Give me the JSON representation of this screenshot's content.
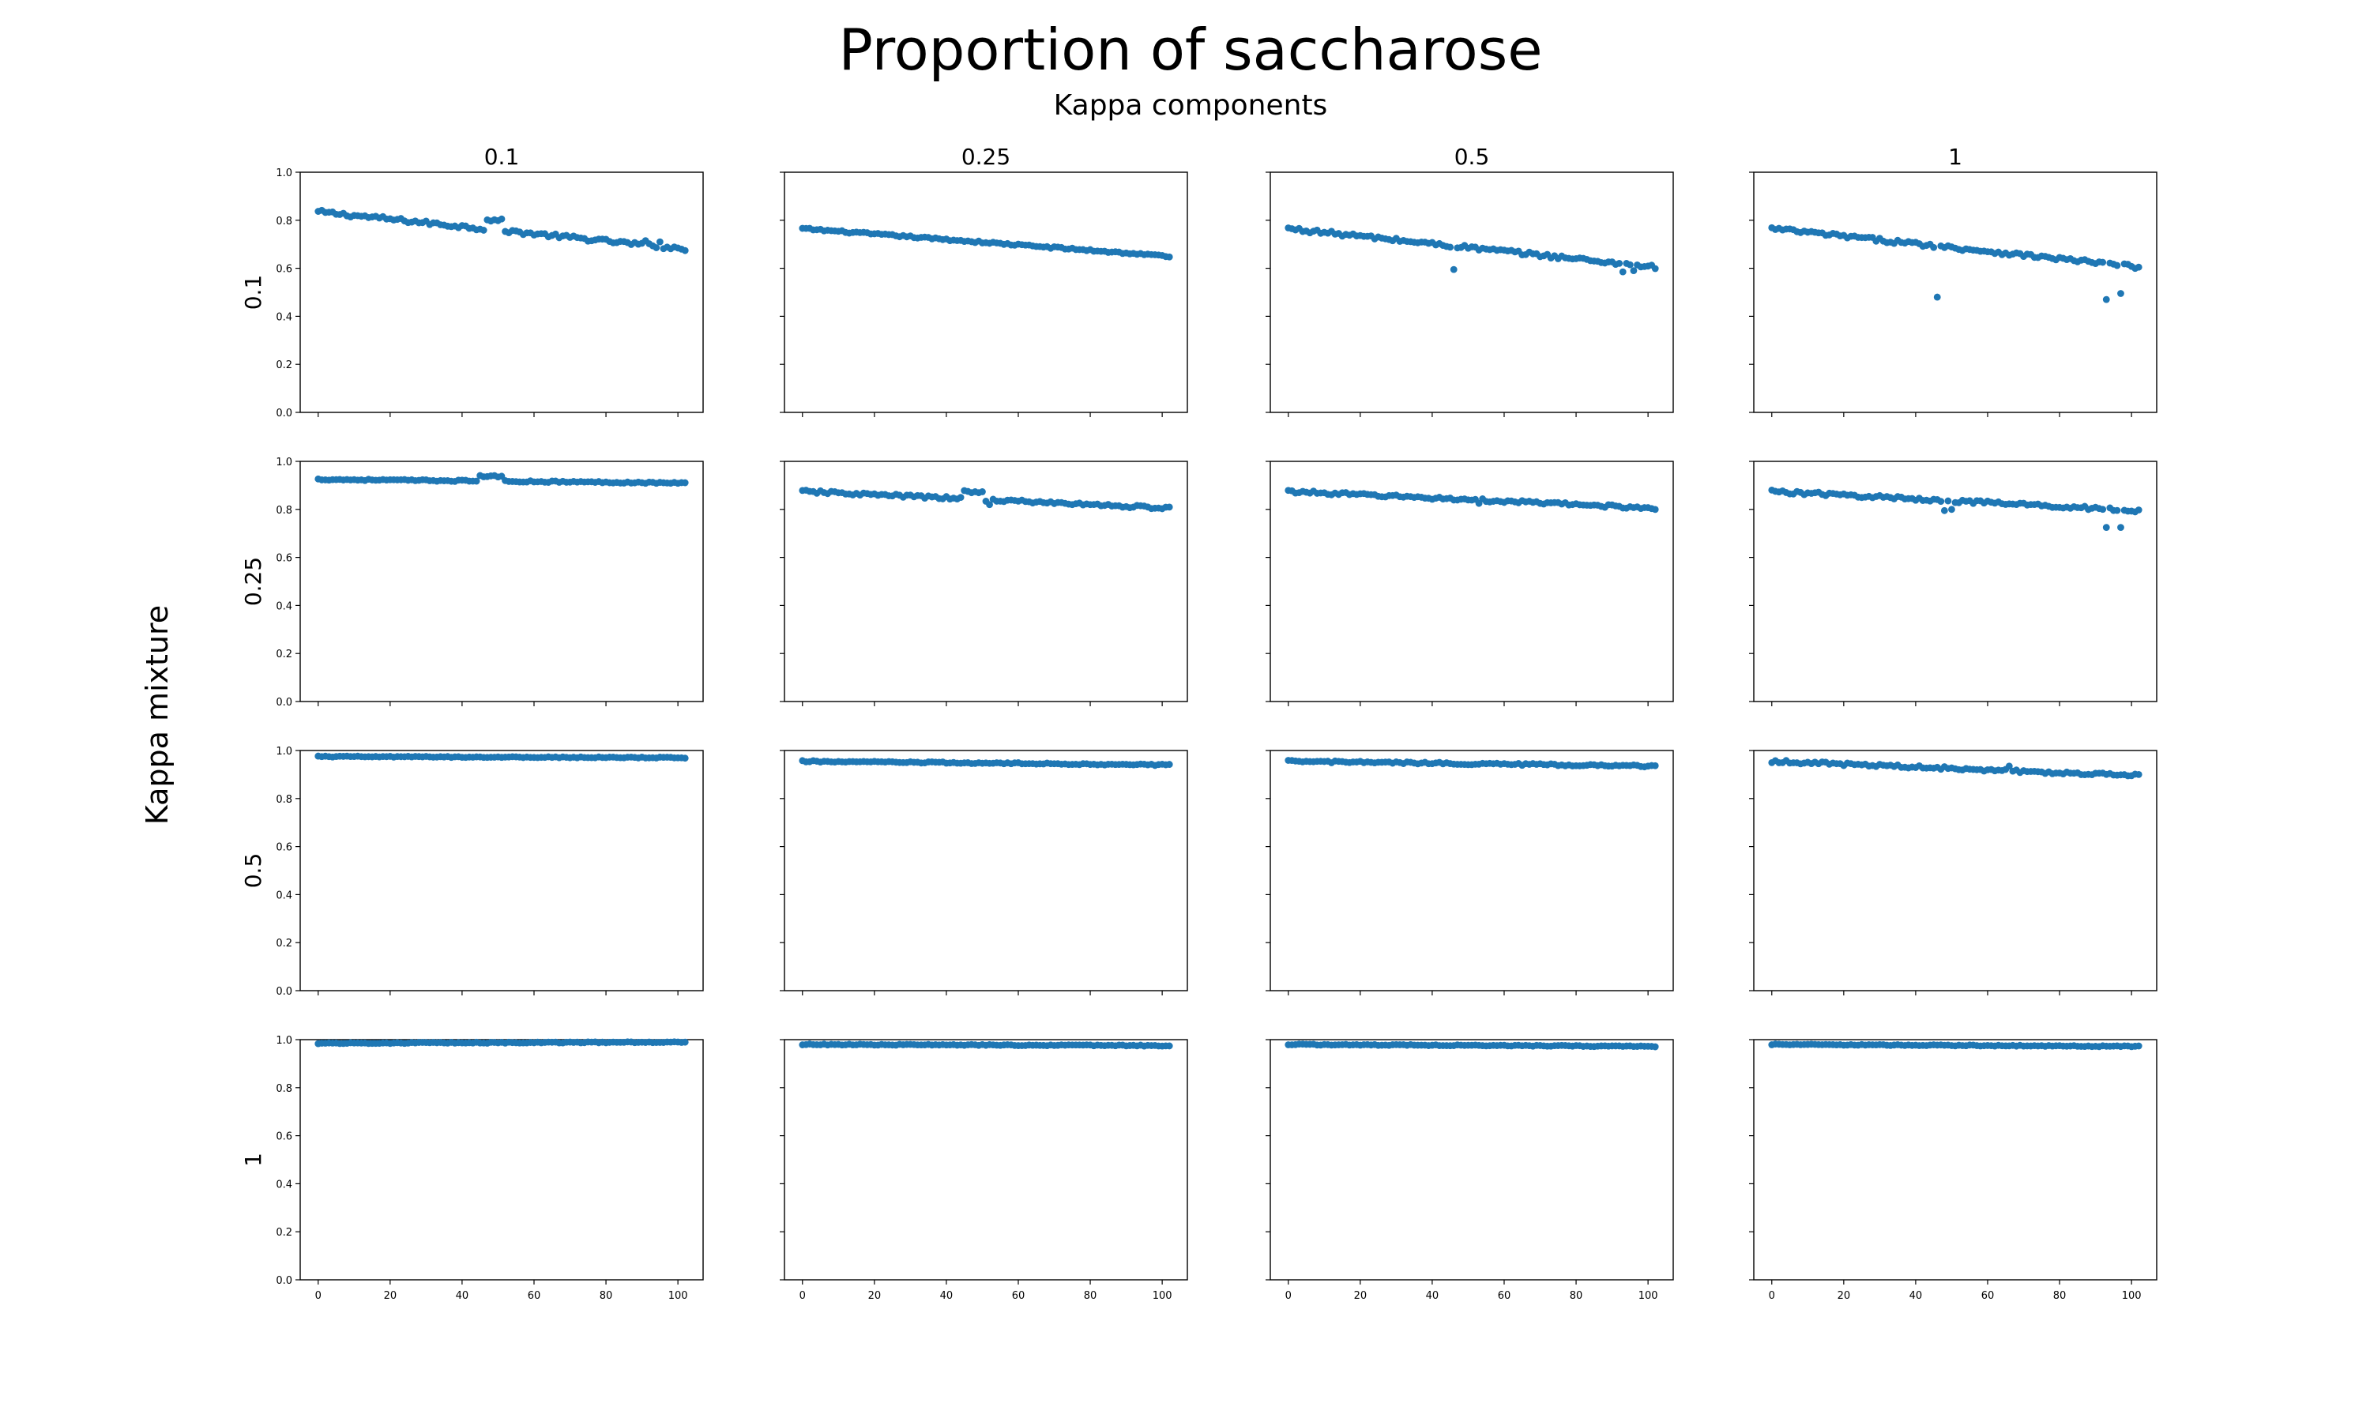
{
  "chart_data": {
    "type": "scatter",
    "title": "Proportion of saccharose",
    "subtitle": "Kappa components",
    "ylabel": "Kappa mixture",
    "columns": [
      "0.1",
      "0.25",
      "0.5",
      "1"
    ],
    "rows": [
      "0.1",
      "0.25",
      "0.5",
      "1"
    ],
    "xlim": [
      -5,
      107
    ],
    "ylim": [
      0,
      1.0
    ],
    "x_ticks": [
      "0",
      "20",
      "40",
      "60",
      "80",
      "100"
    ],
    "y_ticks": [
      "0.0",
      "0.2",
      "0.4",
      "0.6",
      "0.8",
      "1.0"
    ],
    "point_color": "#1f77b4",
    "n_points": 103,
    "grid": false,
    "legend": "none",
    "panels": [
      {
        "row": "0.1",
        "col": "0.1",
        "y_start": 0.835,
        "y_end": 0.68,
        "bump": {
          "from": 47,
          "to": 51,
          "height": 0.04
        },
        "noise": 0.008,
        "outliers": [
          [
            91,
            0.715
          ],
          [
            95,
            0.71
          ]
        ]
      },
      {
        "row": "0.1",
        "col": "0.25",
        "y_start": 0.765,
        "y_end": 0.65,
        "noise": 0.004,
        "outliers": []
      },
      {
        "row": "0.1",
        "col": "0.5",
        "y_start": 0.765,
        "y_end": 0.605,
        "noise": 0.008,
        "outliers": [
          [
            46,
            0.595
          ],
          [
            93,
            0.585
          ],
          [
            96,
            0.59
          ]
        ]
      },
      {
        "row": "0.1",
        "col": "1",
        "y_start": 0.765,
        "y_end": 0.605,
        "noise": 0.008,
        "outliers": [
          [
            46,
            0.48
          ],
          [
            93,
            0.47
          ],
          [
            97,
            0.495
          ]
        ]
      },
      {
        "row": "0.25",
        "col": "0.1",
        "y_start": 0.925,
        "y_end": 0.91,
        "bump": {
          "from": 45,
          "to": 51,
          "height": 0.02
        },
        "noise": 0.003,
        "outliers": []
      },
      {
        "row": "0.25",
        "col": "0.25",
        "y_start": 0.875,
        "y_end": 0.805,
        "bump": {
          "from": 45,
          "to": 50,
          "height": 0.03
        },
        "noise": 0.006,
        "outliers": [
          [
            52,
            0.82
          ]
        ]
      },
      {
        "row": "0.25",
        "col": "0.5",
        "y_start": 0.875,
        "y_end": 0.805,
        "noise": 0.006,
        "outliers": [
          [
            53,
            0.825
          ]
        ]
      },
      {
        "row": "0.25",
        "col": "1",
        "y_start": 0.875,
        "y_end": 0.795,
        "noise": 0.007,
        "outliers": [
          [
            48,
            0.795
          ],
          [
            50,
            0.8
          ],
          [
            93,
            0.725
          ],
          [
            97,
            0.725
          ]
        ]
      },
      {
        "row": "0.5",
        "col": "0.1",
        "y_start": 0.975,
        "y_end": 0.97,
        "noise": 0.002,
        "outliers": []
      },
      {
        "row": "0.5",
        "col": "0.25",
        "y_start": 0.955,
        "y_end": 0.94,
        "noise": 0.003,
        "outliers": []
      },
      {
        "row": "0.5",
        "col": "0.5",
        "y_start": 0.955,
        "y_end": 0.935,
        "noise": 0.004,
        "outliers": []
      },
      {
        "row": "0.5",
        "col": "1",
        "y_start": 0.955,
        "y_end": 0.895,
        "noise": 0.006,
        "outliers": [
          [
            66,
            0.935
          ]
        ]
      },
      {
        "row": "1",
        "col": "0.1",
        "y_start": 0.985,
        "y_end": 0.99,
        "noise": 0.002,
        "outliers": []
      },
      {
        "row": "1",
        "col": "0.25",
        "y_start": 0.98,
        "y_end": 0.975,
        "noise": 0.002,
        "outliers": []
      },
      {
        "row": "1",
        "col": "0.5",
        "y_start": 0.98,
        "y_end": 0.972,
        "noise": 0.002,
        "outliers": []
      },
      {
        "row": "1",
        "col": "1",
        "y_start": 0.98,
        "y_end": 0.972,
        "noise": 0.002,
        "outliers": []
      }
    ]
  }
}
